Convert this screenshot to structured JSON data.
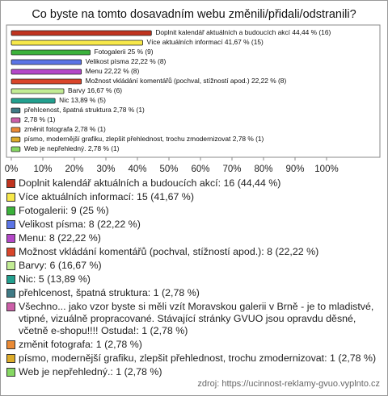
{
  "chart_data": {
    "type": "bar",
    "orientation": "horizontal",
    "title": "Co byste na tomto dosavadním webu změnili/přidali/odstranili?",
    "categories": [
      "Doplnit kalendář aktuálních a budoucích akcí",
      "Více aktuálních informací",
      "Fotogalerii",
      "Velikost písma",
      "Menu",
      "Možnost vkládání komentářů (pochval, stížností apod.)",
      "Barvy",
      "Nic",
      "přehlcenost, špatná struktura",
      "Všechno... jako vzor byste si měli vzít Moravskou galerii v Brně - je to mladistvé, vtipné, vizuálně propracované. Stávající stránky GVUO jsou opravdu děsné, včetně e-shopu!!!! Ostuda!",
      "změnit fotografa",
      "písmo, modernější grafiku, zlepšit přehlednost, trochu zmodernizovat",
      "Web je nepřehledný."
    ],
    "values": [
      44.44,
      41.67,
      25,
      22.22,
      22.22,
      22.22,
      16.67,
      13.89,
      2.78,
      2.78,
      2.78,
      2.78,
      2.78
    ],
    "value_labels": [
      "Doplnit kalendář aktuálních a budoucích akcí 44,44 % (16)",
      "Více aktuálních informací 41,67 % (15)",
      "Fotogalerii 25 % (9)",
      "Velikost písma 22,22 % (8)",
      "Menu 22,22 % (8)",
      "Možnost vkládání komentářů (pochval, stížností apod.) 22,22 % (8)",
      "Barvy 16,67 % (6)",
      "Nic 13,89 % (5)",
      "přehlcenost, špatná struktura 2,78 % (1)",
      "2,78 % (1)",
      "změnit fotografa 2,78 % (1)",
      "písmo, modernější grafiku, zlepšit přehlednost, trochu zmodernizovat 2,78 % (1)",
      "Web je nepřehledný. 2,78 % (1)"
    ],
    "legend_labels": [
      "Doplnit kalendář aktuálních a budoucích akcí: 16 (44,44 %)",
      "Více aktuálních informací: 15 (41,67 %)",
      "Fotogalerii: 9 (25 %)",
      "Velikost písma: 8 (22,22 %)",
      "Menu: 8 (22,22 %)",
      "Možnost vkládání komentářů (pochval, stížností apod.): 8 (22,22 %)",
      "Barvy: 6 (16,67 %)",
      "Nic: 5 (13,89 %)",
      "přehlcenost, špatná struktura: 1 (2,78 %)",
      "Všechno... jako vzor byste si měli vzít Moravskou galerii v Brně - je to mladistvé, vtipné, vizuálně propracované. Stávající stránky GVUO jsou opravdu děsné, včetně e-shopu!!!! Ostuda!: 1 (2,78 %)",
      "změnit fotografa: 1 (2,78 %)",
      "písmo, modernější grafiku, zlepšit přehlednost, trochu zmodernizovat: 1 (2,78 %)",
      "Web je nepřehledný.: 1 (2,78 %)"
    ],
    "colors": [
      "#c0331f",
      "#f7e84a",
      "#3bb23b",
      "#5b74e6",
      "#b447c8",
      "#d9452a",
      "#c2ec94",
      "#22a08f",
      "#3f7a85",
      "#cc5fa8",
      "#ea8a35",
      "#ddac2a",
      "#86d863"
    ],
    "xlim": [
      0,
      100
    ],
    "xticks": [
      {
        "value": 0,
        "label": "0%"
      },
      {
        "value": 10,
        "label": "10%"
      },
      {
        "value": 20,
        "label": "20%"
      },
      {
        "value": 30,
        "label": "30%"
      },
      {
        "value": 40,
        "label": "40%"
      },
      {
        "value": 50,
        "label": "50%"
      },
      {
        "value": 60,
        "label": "60%"
      },
      {
        "value": 70,
        "label": "70%"
      },
      {
        "value": 80,
        "label": "80%"
      },
      {
        "value": 90,
        "label": "90%"
      },
      {
        "value": 100,
        "label": "100%"
      }
    ],
    "source": "zdroj: https://ucinnost-reklamy-gvuo.vyplnto.cz"
  }
}
